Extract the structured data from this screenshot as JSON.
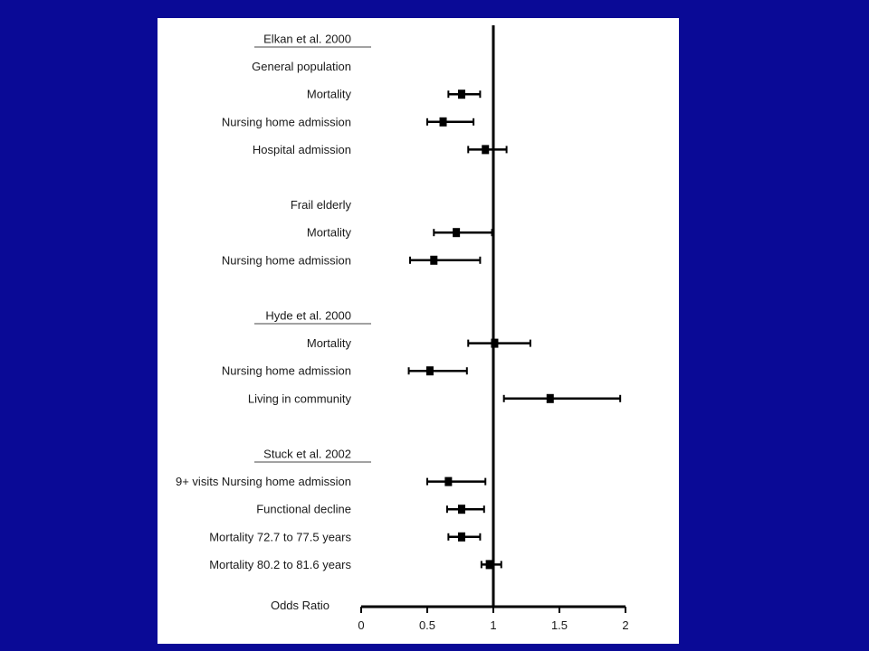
{
  "slide": {
    "background": "#0a0a96",
    "panel_color": "#ffffff"
  },
  "chart_data": {
    "type": "forest",
    "xlabel": "Odds Ratio",
    "xlim": [
      0,
      2
    ],
    "xticks": [
      0,
      0.5,
      1,
      1.5,
      2
    ],
    "xtick_labels": [
      "0",
      "0.5",
      "1",
      "1.5",
      "2"
    ],
    "reference_line": 1,
    "rows": [
      {
        "label": "Elkan et al. 2000",
        "kind": "study"
      },
      {
        "label": "General population",
        "kind": "group"
      },
      {
        "label": "Mortality",
        "kind": "estimate",
        "or": 0.76,
        "lo": 0.66,
        "hi": 0.9
      },
      {
        "label": "Nursing home admission",
        "kind": "estimate",
        "or": 0.62,
        "lo": 0.5,
        "hi": 0.85
      },
      {
        "label": "Hospital admission",
        "kind": "estimate",
        "or": 0.94,
        "lo": 0.81,
        "hi": 1.1
      },
      {
        "label": "",
        "kind": "spacer"
      },
      {
        "label": "Frail elderly",
        "kind": "group"
      },
      {
        "label": "Mortality",
        "kind": "estimate",
        "or": 0.72,
        "lo": 0.55,
        "hi": 0.99
      },
      {
        "label": "Nursing home admission",
        "kind": "estimate",
        "or": 0.55,
        "lo": 0.37,
        "hi": 0.9
      },
      {
        "label": "",
        "kind": "spacer"
      },
      {
        "label": "Hyde et al. 2000",
        "kind": "study"
      },
      {
        "label": "Mortality",
        "kind": "estimate",
        "or": 1.01,
        "lo": 0.81,
        "hi": 1.28
      },
      {
        "label": "Nursing home admission",
        "kind": "estimate",
        "or": 0.52,
        "lo": 0.36,
        "hi": 0.8
      },
      {
        "label": "Living in community",
        "kind": "estimate",
        "or": 1.43,
        "lo": 1.08,
        "hi": 1.96
      },
      {
        "label": "",
        "kind": "spacer"
      },
      {
        "label": "Stuck et al. 2002",
        "kind": "study"
      },
      {
        "label": "9+ visits Nursing home admission",
        "kind": "estimate",
        "or": 0.66,
        "lo": 0.5,
        "hi": 0.94
      },
      {
        "label": "Functional decline",
        "kind": "estimate",
        "or": 0.76,
        "lo": 0.65,
        "hi": 0.93
      },
      {
        "label": "Mortality 72.7 to 77.5 years",
        "kind": "estimate",
        "or": 0.76,
        "lo": 0.66,
        "hi": 0.9
      },
      {
        "label": "Mortality 80.2 to 81.6 years",
        "kind": "estimate",
        "or": 0.97,
        "lo": 0.91,
        "hi": 1.06
      }
    ]
  }
}
